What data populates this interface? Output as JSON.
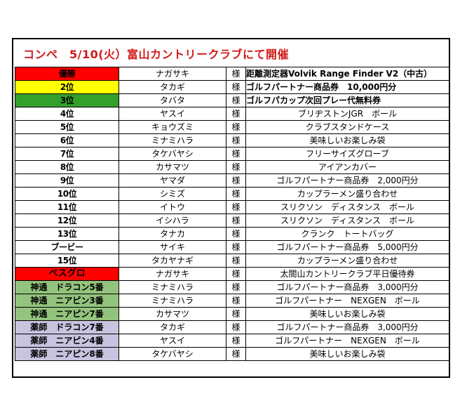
{
  "title": "コンペ　5/10(火）富山カントリークラブにて開催",
  "colors": {
    "red": "#ff0000",
    "yellow": "#ffff00",
    "green": "#33a02c",
    "lightgreen": "#93c47d",
    "lavender": "#c9c3e0",
    "blue": "#1f6fbf"
  },
  "rows": [
    {
      "rank": "優勝",
      "name": "ナガサキ",
      "sama": "様",
      "prize": "距離測定器Volvik Range Finder V2（中古）"
    },
    {
      "rank": "2位",
      "name": "タカギ",
      "sama": "様",
      "prize": "ゴルフパートナー商品券　10,000円分"
    },
    {
      "rank": "3位",
      "name": "タバタ",
      "sama": "様",
      "prize": "ゴルフパカップ次回プレー代無料券"
    },
    {
      "rank": "4位",
      "name": "ヤスイ",
      "sama": "様",
      "prize": "ブリヂストンJGR　ボール"
    },
    {
      "rank": "5位",
      "name": "キョウズミ",
      "sama": "様",
      "prize": "クラブスタンドケース"
    },
    {
      "rank": "6位",
      "name": "ミナミハラ",
      "sama": "様",
      "prize": "美味しいお楽しみ袋"
    },
    {
      "rank": "7位",
      "name": "タケバヤシ",
      "sama": "様",
      "prize": "フリーサイズグローブ"
    },
    {
      "rank": "8位",
      "name": "カサマツ",
      "sama": "様",
      "prize": "アイアンカバー"
    },
    {
      "rank": "9位",
      "name": "ヤマダ",
      "sama": "様",
      "prize": "ゴルフパートナー商品券　2,000円分"
    },
    {
      "rank": "10位",
      "name": "シミズ",
      "sama": "様",
      "prize": "カップラーメン盛り合わせ"
    },
    {
      "rank": "11位",
      "name": "イトウ",
      "sama": "様",
      "prize": "スリクソン　ディスタンス　ボール"
    },
    {
      "rank": "12位",
      "name": "イシハラ",
      "sama": "様",
      "prize": "スリクソン　ディスタンス　ボール"
    },
    {
      "rank": "13位",
      "name": "タナカ",
      "sama": "様",
      "prize": "クランク　トートバッグ"
    },
    {
      "rank": "ブービー",
      "name": "サイキ",
      "sama": "様",
      "prize": "ゴルフパートナー商品券　5,000円分"
    },
    {
      "rank": "15位",
      "name": "タカヤナギ",
      "sama": "様",
      "prize": "カップラーメン盛り合わせ"
    },
    {
      "rank": "ベスグロ",
      "name": "ナガサキ",
      "sama": "様",
      "prize": "太閤山カントリークラブ平日優待券"
    },
    {
      "rank": "神通　ドラコン5番",
      "name": "ミナミハラ",
      "sama": "様",
      "prize": "ゴルフパートナー商品券　3,000円分"
    },
    {
      "rank": "神通　ニアピン3番",
      "name": "ミナミハラ",
      "sama": "様",
      "prize": "ゴルフパートナー　NEXGEN　ボール"
    },
    {
      "rank": "神通　ニアピン7番",
      "name": "カサマツ",
      "sama": "様",
      "prize": "美味しいお楽しみ袋"
    },
    {
      "rank": "薬師　ドラコン7番",
      "name": "タカギ",
      "sama": "様",
      "prize": "ゴルフパートナー商品券　3,000円分"
    },
    {
      "rank": "薬師　ニアピン4番",
      "name": "ヤスイ",
      "sama": "様",
      "prize": "ゴルフパートナー　NEXGEN　ボール"
    },
    {
      "rank": "薬師　ニアピン8番",
      "name": "タケバヤシ",
      "sama": "様",
      "prize": "美味しいお楽しみ袋"
    }
  ]
}
